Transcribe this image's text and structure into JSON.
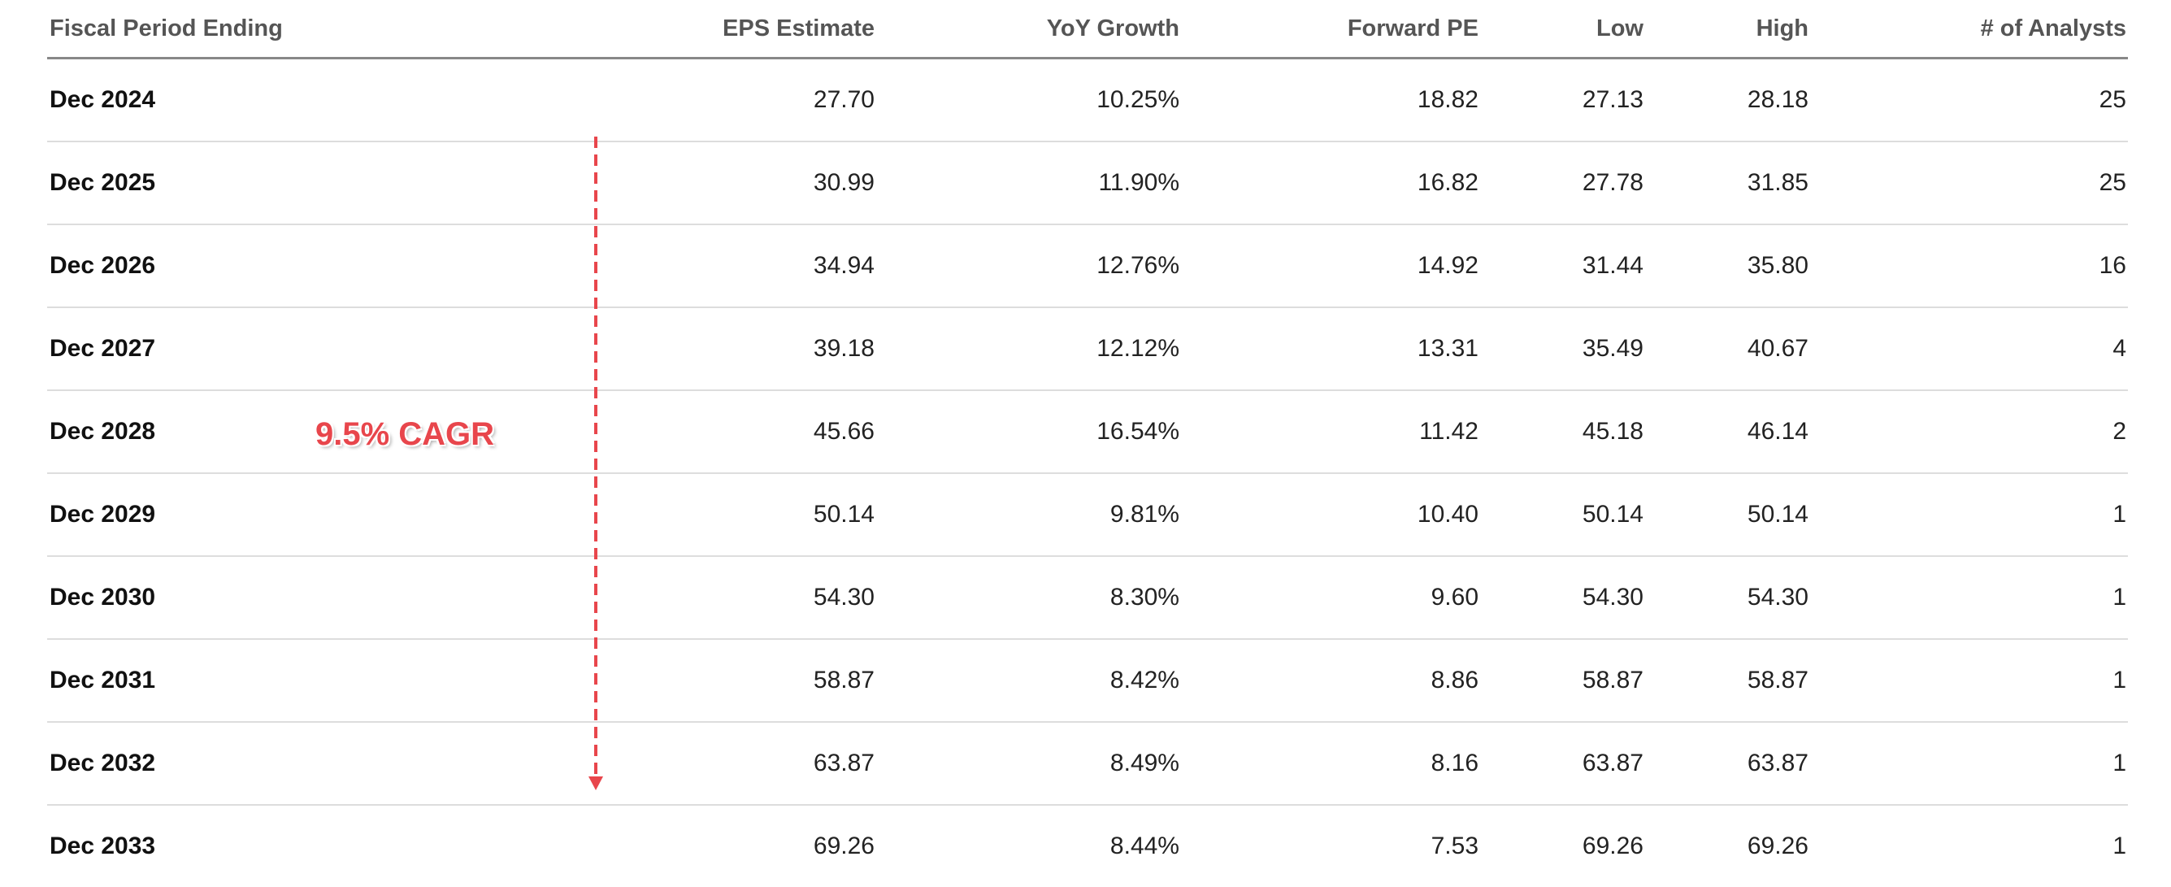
{
  "table": {
    "headers": [
      "Fiscal Period Ending",
      "EPS Estimate",
      "YoY Growth",
      "Forward PE",
      "Low",
      "High",
      "# of Analysts"
    ],
    "rows": [
      {
        "period": "Dec 2024",
        "eps": "27.70",
        "yoy": "10.25%",
        "fpe": "18.82",
        "low": "27.13",
        "high": "28.18",
        "analysts": "25"
      },
      {
        "period": "Dec 2025",
        "eps": "30.99",
        "yoy": "11.90%",
        "fpe": "16.82",
        "low": "27.78",
        "high": "31.85",
        "analysts": "25"
      },
      {
        "period": "Dec 2026",
        "eps": "34.94",
        "yoy": "12.76%",
        "fpe": "14.92",
        "low": "31.44",
        "high": "35.80",
        "analysts": "16"
      },
      {
        "period": "Dec 2027",
        "eps": "39.18",
        "yoy": "12.12%",
        "fpe": "13.31",
        "low": "35.49",
        "high": "40.67",
        "analysts": "4"
      },
      {
        "period": "Dec 2028",
        "eps": "45.66",
        "yoy": "16.54%",
        "fpe": "11.42",
        "low": "45.18",
        "high": "46.14",
        "analysts": "2"
      },
      {
        "period": "Dec 2029",
        "eps": "50.14",
        "yoy": "9.81%",
        "fpe": "10.40",
        "low": "50.14",
        "high": "50.14",
        "analysts": "1"
      },
      {
        "period": "Dec 2030",
        "eps": "54.30",
        "yoy": "8.30%",
        "fpe": "9.60",
        "low": "54.30",
        "high": "54.30",
        "analysts": "1"
      },
      {
        "period": "Dec 2031",
        "eps": "58.87",
        "yoy": "8.42%",
        "fpe": "8.86",
        "low": "58.87",
        "high": "58.87",
        "analysts": "1"
      },
      {
        "period": "Dec 2032",
        "eps": "63.87",
        "yoy": "8.49%",
        "fpe": "8.16",
        "low": "63.87",
        "high": "63.87",
        "analysts": "1"
      },
      {
        "period": "Dec 2033",
        "eps": "69.26",
        "yoy": "8.44%",
        "fpe": "7.53",
        "low": "69.26",
        "high": "69.26",
        "analysts": "1"
      }
    ]
  },
  "annotation": {
    "label": "9.5% CAGR",
    "color": "#e8464c"
  }
}
